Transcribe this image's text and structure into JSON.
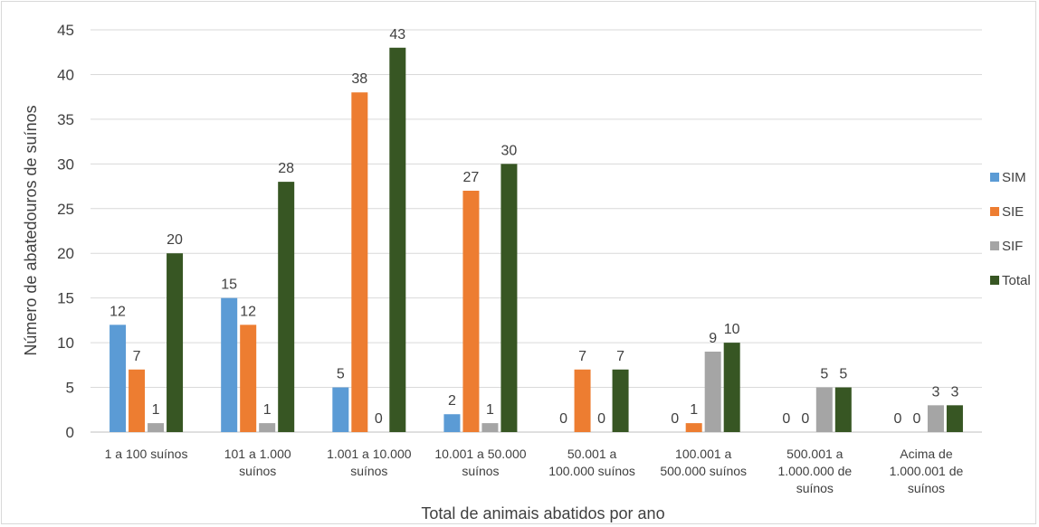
{
  "chart_data": {
    "type": "bar",
    "title": "",
    "xlabel": "Total de animais abatidos por ano",
    "ylabel": "Número de abatedouros de suínos",
    "ylim": [
      0,
      45
    ],
    "yticks": [
      0,
      5,
      10,
      15,
      20,
      25,
      30,
      35,
      40,
      45
    ],
    "grid": true,
    "legend_position": "right",
    "categories": [
      [
        "1 a 100 suínos"
      ],
      [
        "101 a 1.000",
        "suínos"
      ],
      [
        "1.001 a 10.000",
        "suínos"
      ],
      [
        "10.001 a 50.000",
        "suínos"
      ],
      [
        "50.001 a",
        "100.000 suínos"
      ],
      [
        "100.001 a",
        "500.000 suínos"
      ],
      [
        "500.001 a",
        "1.000.000 de",
        "suínos"
      ],
      [
        "Acima de",
        "1.000.001 de",
        "suínos"
      ]
    ],
    "series": [
      {
        "name": "SIM",
        "color": "#5b9bd5",
        "values": [
          12,
          15,
          5,
          2,
          0,
          0,
          0,
          0
        ]
      },
      {
        "name": "SIE",
        "color": "#ed7d31",
        "values": [
          7,
          12,
          38,
          27,
          7,
          1,
          0,
          0
        ]
      },
      {
        "name": "SIF",
        "color": "#a5a5a5",
        "values": [
          1,
          1,
          0,
          1,
          0,
          9,
          5,
          3
        ]
      },
      {
        "name": "Total",
        "color": "#375623",
        "values": [
          20,
          28,
          43,
          30,
          7,
          10,
          5,
          3
        ]
      }
    ]
  }
}
